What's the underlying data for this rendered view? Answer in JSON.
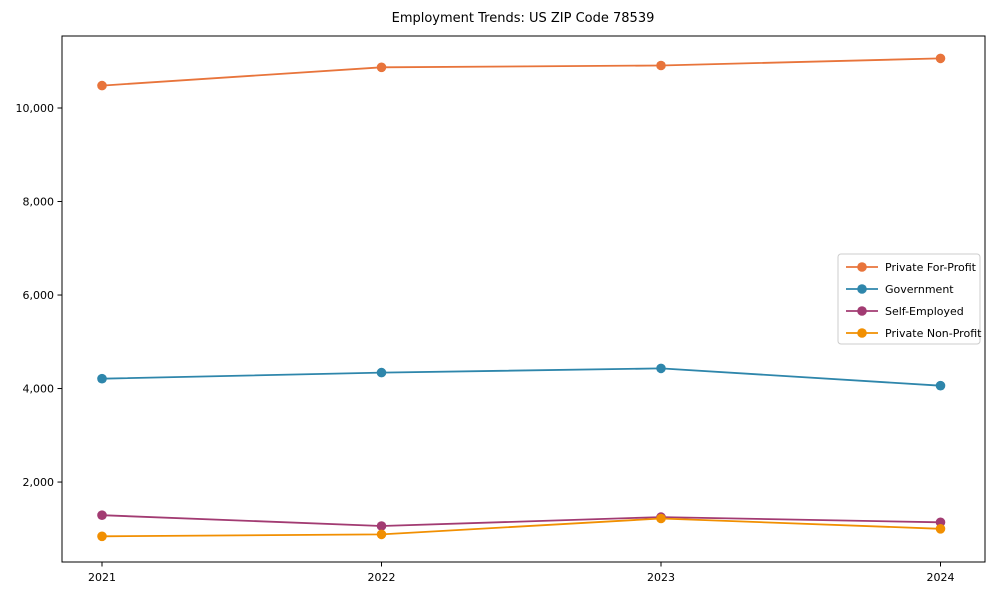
{
  "chart_data": {
    "type": "line",
    "title": "Employment Trends: US ZIP Code 78539",
    "xlabel": "",
    "ylabel": "",
    "x": [
      2021,
      2022,
      2023,
      2024
    ],
    "xtick_labels": [
      "2021",
      "2022",
      "2023",
      "2024"
    ],
    "yticks": [
      2000,
      4000,
      6000,
      8000,
      10000
    ],
    "ytick_labels": [
      "2,000",
      "4,000",
      "6,000",
      "8,000",
      "10,000"
    ],
    "ylim": [
      290,
      11540
    ],
    "grid": false,
    "marker": "circle",
    "legend_position": "center-right",
    "series": [
      {
        "name": "Private For-Profit",
        "color": "#E8743B",
        "values": [
          10480,
          10870,
          10910,
          11060
        ]
      },
      {
        "name": "Government",
        "color": "#2E86AB",
        "values": [
          4210,
          4340,
          4430,
          4060
        ]
      },
      {
        "name": "Self-Employed",
        "color": "#A23B72",
        "values": [
          1290,
          1060,
          1250,
          1140
        ]
      },
      {
        "name": "Private Non-Profit",
        "color": "#F18F01",
        "values": [
          840,
          880,
          1220,
          1000
        ]
      }
    ],
    "axis_color": "#000000",
    "legend_border_color": "#cccccc",
    "background_color": "#ffffff"
  }
}
